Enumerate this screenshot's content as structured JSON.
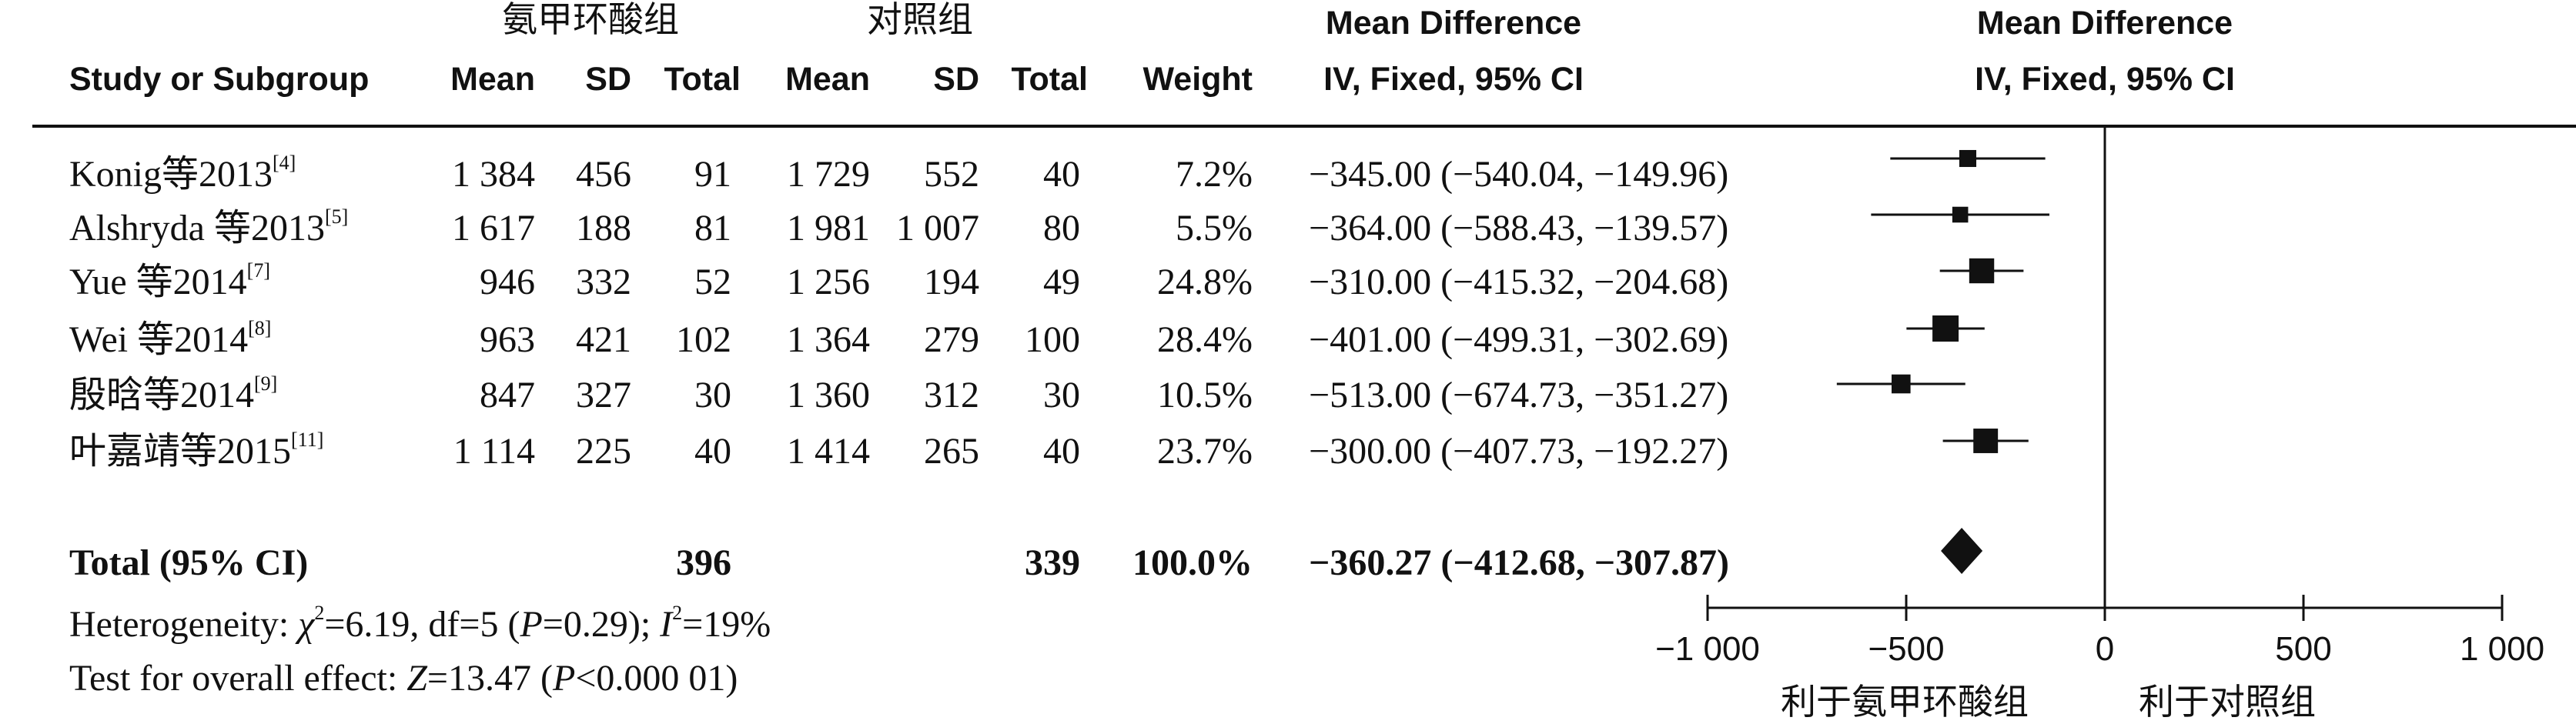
{
  "chart_data": {
    "type": "forest",
    "group_headers": {
      "treatment": "氨甲环酸组",
      "control": "对照组"
    },
    "effect_header": {
      "line1": "Mean Difference",
      "line2": "IV, Fixed, 95% CI"
    },
    "plot_header": {
      "line1": "Mean Difference",
      "line2": "IV, Fixed, 95% CI"
    },
    "columns": [
      "Study or Subgroup",
      "Mean",
      "SD",
      "Total",
      "Mean",
      "SD",
      "Total",
      "Weight"
    ],
    "studies": [
      {
        "name": "Konig等2013",
        "ref": "[4]",
        "t_mean": "1 384",
        "t_sd": "456",
        "t_total": "91",
        "c_mean": "1 729",
        "c_sd": "552",
        "c_total": "40",
        "weight": "7.2%",
        "ci_text": "−345.00 (−540.04, −149.96)",
        "md": -345.0,
        "lo": -540.04,
        "hi": -149.96,
        "w": 7.2
      },
      {
        "name": "Alshryda 等2013",
        "ref": "[5]",
        "t_mean": "1 617",
        "t_sd": "188",
        "t_total": "81",
        "c_mean": "1 981",
        "c_sd": "1 007",
        "c_total": "80",
        "weight": "5.5%",
        "ci_text": "−364.00 (−588.43, −139.57)",
        "md": -364.0,
        "lo": -588.43,
        "hi": -139.57,
        "w": 5.5
      },
      {
        "name": "Yue 等2014",
        "ref": "[7]",
        "t_mean": "946",
        "t_sd": "332",
        "t_total": "52",
        "c_mean": "1 256",
        "c_sd": "194",
        "c_total": "49",
        "weight": "24.8%",
        "ci_text": "−310.00 (−415.32, −204.68)",
        "md": -310.0,
        "lo": -415.32,
        "hi": -204.68,
        "w": 24.8
      },
      {
        "name": "Wei 等2014",
        "ref": "[8]",
        "t_mean": "963",
        "t_sd": "421",
        "t_total": "102",
        "c_mean": "1 364",
        "c_sd": "279",
        "c_total": "100",
        "weight": "28.4%",
        "ci_text": "−401.00 (−499.31, −302.69)",
        "md": -401.0,
        "lo": -499.31,
        "hi": -302.69,
        "w": 28.4
      },
      {
        "name": "殷晗等2014",
        "ref": "[9]",
        "t_mean": "847",
        "t_sd": "327",
        "t_total": "30",
        "c_mean": "1 360",
        "c_sd": "312",
        "c_total": "30",
        "weight": "10.5%",
        "ci_text": "−513.00 (−674.73, −351.27)",
        "md": -513.0,
        "lo": -674.73,
        "hi": -351.27,
        "w": 10.5
      },
      {
        "name": "叶嘉靖等2015",
        "ref": "[11]",
        "t_mean": "1 114",
        "t_sd": "225",
        "t_total": "40",
        "c_mean": "1 414",
        "c_sd": "265",
        "c_total": "40",
        "weight": "23.7%",
        "ci_text": "−300.00 (−407.73, −192.27)",
        "md": -300.0,
        "lo": -407.73,
        "hi": -192.27,
        "w": 23.7
      }
    ],
    "total": {
      "label": "Total (95% CI)",
      "t_total": "396",
      "c_total": "339",
      "weight": "100.0%",
      "ci_text": "−360.27 (−412.68, −307.87)",
      "md": -360.27,
      "lo": -412.68,
      "hi": -307.87
    },
    "heterogeneity": {
      "prefix": "Heterogeneity: ",
      "chi": "χ",
      "chi_sup": "2",
      "chi_val": "=6.19, df=5 (",
      "p": "P",
      "p_val": "=0.29); ",
      "i": "I",
      "i_sup": "2",
      "i_val": "=19%"
    },
    "overall": {
      "prefix": "Test for overall effect: ",
      "z": "Z",
      "z_val": "=13.47 (",
      "p": "P",
      "p_val": "<0.000 01)"
    },
    "xaxis": {
      "min": -1000,
      "max": 1000,
      "ticks": [
        -1000,
        -500,
        0,
        500,
        1000
      ],
      "tick_labels": [
        "−1 000",
        "−500",
        "0",
        "500",
        "1 000"
      ]
    },
    "favours": {
      "left": "利于氨甲环酸组",
      "right": "利于对照组"
    }
  }
}
